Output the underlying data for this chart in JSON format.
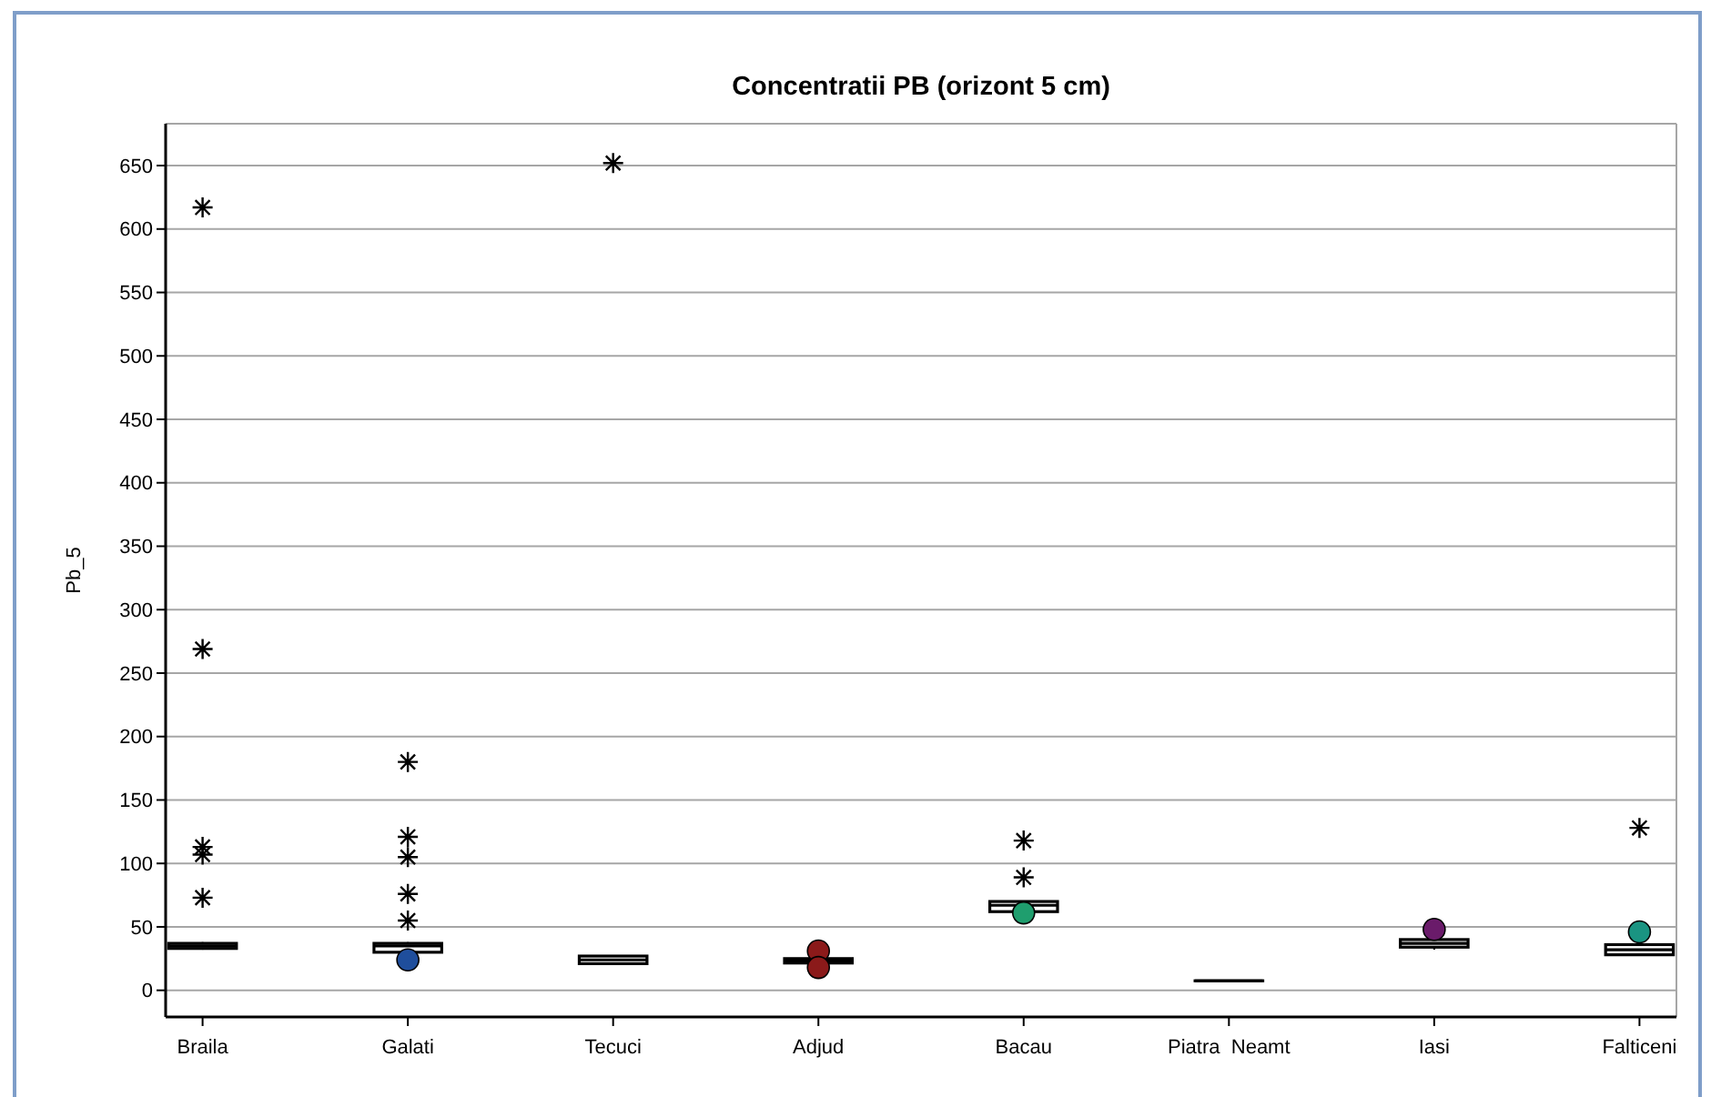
{
  "chart_data": {
    "type": "box",
    "title": "Concentratii PB (orizont 5 cm)",
    "ylabel": "Pb_5",
    "categories": [
      "Braila",
      "Galati",
      "Tecuci",
      "Adjud",
      "Bacau",
      "Piatra  Neamt",
      "Iasi",
      "Falticeni"
    ],
    "boxes": [
      {
        "low": 32,
        "q1": 33,
        "median": 35,
        "q3": 37,
        "high": 38,
        "outliers": [
          73,
          107,
          113,
          269,
          617
        ]
      },
      {
        "low": 29,
        "q1": 30,
        "median": 35,
        "q3": 37,
        "high": 38,
        "outliers": [
          55,
          76,
          105,
          121,
          180
        ]
      },
      {
        "low": 20,
        "q1": 21,
        "median": 24,
        "q3": 27,
        "high": 27,
        "outliers": [
          652
        ]
      },
      {
        "low": 21,
        "q1": 21.5,
        "median": 23,
        "q3": 25,
        "high": 25
      },
      {
        "low": 62,
        "q1": 62,
        "median": 67,
        "q3": 70,
        "high": 70,
        "outliers": [
          89,
          118
        ]
      },
      {
        "low": 7.5,
        "q1": 7.5,
        "median": 7.5,
        "q3": 7.5,
        "high": 7.5
      },
      {
        "low": 32,
        "q1": 34,
        "median": 37,
        "q3": 40,
        "high": 40,
        "outliers": [
          49
        ]
      },
      {
        "low": 28,
        "q1": 28,
        "median": 32,
        "q3": 36,
        "high": 36,
        "outliers": [
          128
        ]
      }
    ],
    "color": "#000000",
    "marker": "star",
    "series": [
      {
        "type": "scatter",
        "x": [
          "Galati",
          "Adjud",
          "Adjud",
          "Bacau",
          "Iasi",
          "Falticeni"
        ],
        "values": [
          24,
          31,
          18,
          61,
          48,
          46
        ],
        "colors": [
          "#1f4e9c",
          "#8b1a1a",
          "#8b1a1a",
          "#1f9e6e",
          "#6a1b6a",
          "#1a9482"
        ],
        "marker": "circle"
      }
    ],
    "ylim": [
      -21,
      683
    ],
    "yticks": [
      0,
      50,
      100,
      150,
      200,
      250,
      300,
      350,
      400,
      450,
      500,
      550,
      600,
      650
    ],
    "grid": "y"
  }
}
